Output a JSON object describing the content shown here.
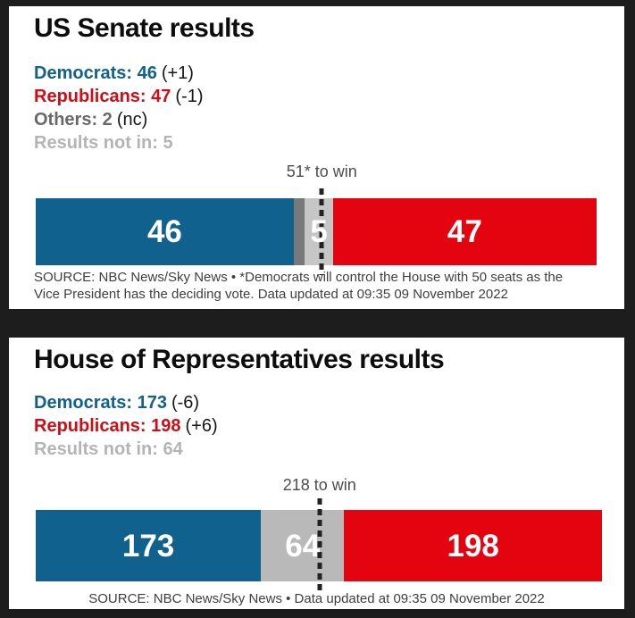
{
  "colors": {
    "page_background": "#1d1d1d",
    "card_background": "#ffffff",
    "democrat_blue": "#10618e",
    "republican_red_bar": "#e4040f",
    "republican_red_text": "#d40b12",
    "others_gray_bar": "#787878",
    "others_gray_text": "#696969",
    "not_in_gray_bar_senate": "#c6c6c6",
    "not_in_gray_bar_house": "#b9b9b9",
    "not_in_gray_text": "#b4b4b4",
    "threshold_dash": "#222222",
    "bar_label_white": "#ffffff"
  },
  "panels": [
    {
      "title": "US Senate results",
      "stats": [
        {
          "text": "Democrats: 46",
          "change": "(+1)",
          "color": "#10618e"
        },
        {
          "text": "Republicans: 47",
          "change": "(-1)",
          "color": "#d40b12"
        },
        {
          "text": "Others: 2",
          "change": "(nc)",
          "color": "#696969"
        },
        {
          "text": "Results not in: 5",
          "change": "",
          "color": "#b4b4b4"
        }
      ],
      "to_win": "51* to win",
      "source_lines": [
        "SOURCE: NBC News/Sky News • *Democrats will control the House with 50 seats as the",
        "Vice President has the deciding vote. Data updated at 09:35 09 November 2022"
      ]
    },
    {
      "title": "House of Representatives results",
      "stats": [
        {
          "text": "Democrats: 173",
          "change": "(-6)",
          "color": "#10618e"
        },
        {
          "text": "Republicans: 198",
          "change": "(+6)",
          "color": "#d40b12"
        },
        {
          "text": "Results not in: 64",
          "change": "",
          "color": "#b4b4b4"
        }
      ],
      "to_win": "218 to win",
      "source_lines": [
        "SOURCE: NBC News/Sky News • Data updated at 09:35 09 November 2022"
      ]
    }
  ],
  "chart_data": [
    {
      "type": "bar",
      "subtype": "horizontal-stacked-seats",
      "title": "US Senate results",
      "total_seats": 100,
      "threshold": {
        "seats": 51,
        "label": "51* to win"
      },
      "segments": [
        {
          "name": "Democrats",
          "seats": 46,
          "change": "+1",
          "color": "#10618e",
          "bar_label": "46"
        },
        {
          "name": "Others",
          "seats": 2,
          "change": "nc",
          "color": "#787878",
          "bar_label": ""
        },
        {
          "name": "Results not in",
          "seats": 5,
          "change": "",
          "color": "#c6c6c6",
          "bar_label": "5"
        },
        {
          "name": "Republicans",
          "seats": 47,
          "change": "-1",
          "color": "#e4040f",
          "bar_label": "47"
        }
      ]
    },
    {
      "type": "bar",
      "subtype": "horizontal-stacked-seats",
      "title": "House of Representatives results",
      "total_seats": 435,
      "threshold": {
        "seats": 218,
        "label": "218 to win"
      },
      "segments": [
        {
          "name": "Democrats",
          "seats": 173,
          "change": "-6",
          "color": "#10618e",
          "bar_label": "173"
        },
        {
          "name": "Results not in",
          "seats": 64,
          "change": "",
          "color": "#b9b9b9",
          "bar_label": "64"
        },
        {
          "name": "Republicans",
          "seats": 198,
          "change": "+6",
          "color": "#e4040f",
          "bar_label": "198"
        }
      ]
    }
  ]
}
